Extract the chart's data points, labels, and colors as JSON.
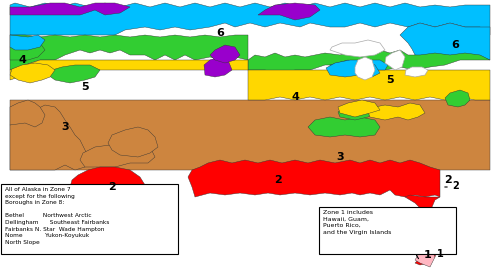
{
  "zone_colors": {
    "1": "#FFB6C1",
    "2": "#FF0000",
    "3": "#CD853F",
    "4": "#FFD700",
    "5": "#32CD32",
    "6": "#00BFFF",
    "7": "#9900CC",
    "ocean": "#FFFFFF"
  },
  "figsize": [
    5.0,
    2.75
  ],
  "dpi": 100,
  "alaska_text": "All of Alaska in Zone 7\nexcept for the following\nBoroughs in Zone 8:\n\nBethel          Northwest Arctic\nDellingham      Southeast Fairbanks\nFairbanks N. Star  Wade Hampton\nNome            Yukon-Koyukuk\nNorth Slope",
  "zone1_text": "Zone 1 includes\nHawaii, Guam,\nPuerto Rico,\nand the Virgin Islands"
}
